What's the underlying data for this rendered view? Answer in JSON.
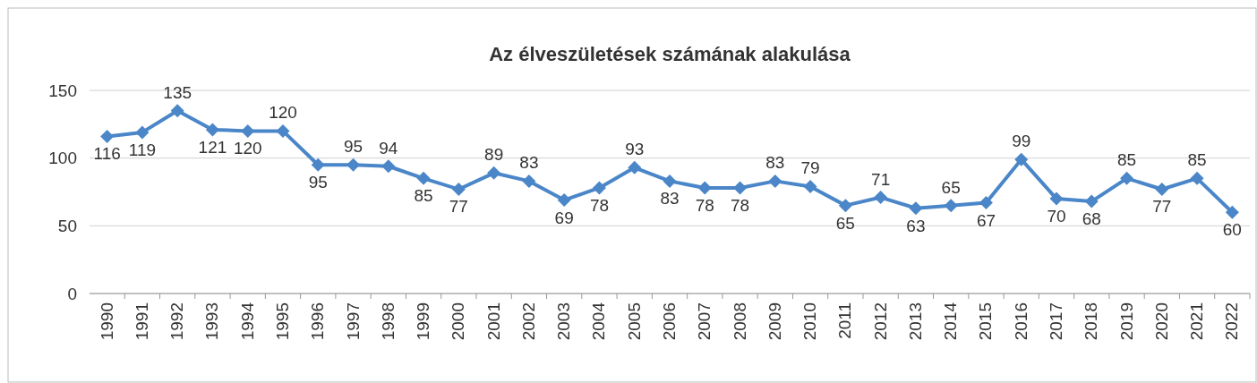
{
  "chart_data": {
    "type": "line",
    "title": "Az élveszületések számának alakulása",
    "categories": [
      "1990",
      "1991",
      "1992",
      "1993",
      "1994",
      "1995",
      "1996",
      "1997",
      "1998",
      "1999",
      "2000",
      "2001",
      "2002",
      "2003",
      "2004",
      "2005",
      "2006",
      "2007",
      "2008",
      "2009",
      "2010",
      "2011",
      "2012",
      "2013",
      "2014",
      "2015",
      "2016",
      "2017",
      "2018",
      "2019",
      "2020",
      "2021",
      "2022"
    ],
    "series": [
      {
        "color": "#4a86c8",
        "values": [
          116,
          119,
          135,
          121,
          120,
          120,
          95,
          95,
          94,
          85,
          77,
          89,
          83,
          69,
          78,
          93,
          83,
          78,
          78,
          83,
          79,
          65,
          71,
          63,
          65,
          67,
          99,
          70,
          68,
          85,
          77,
          85,
          60
        ]
      }
    ],
    "ylim": [
      0,
      150
    ],
    "yticks": [
      0,
      50,
      100,
      150
    ],
    "grid": "y",
    "marker": "diamond",
    "line_style": "solid",
    "data_labels": true
  }
}
